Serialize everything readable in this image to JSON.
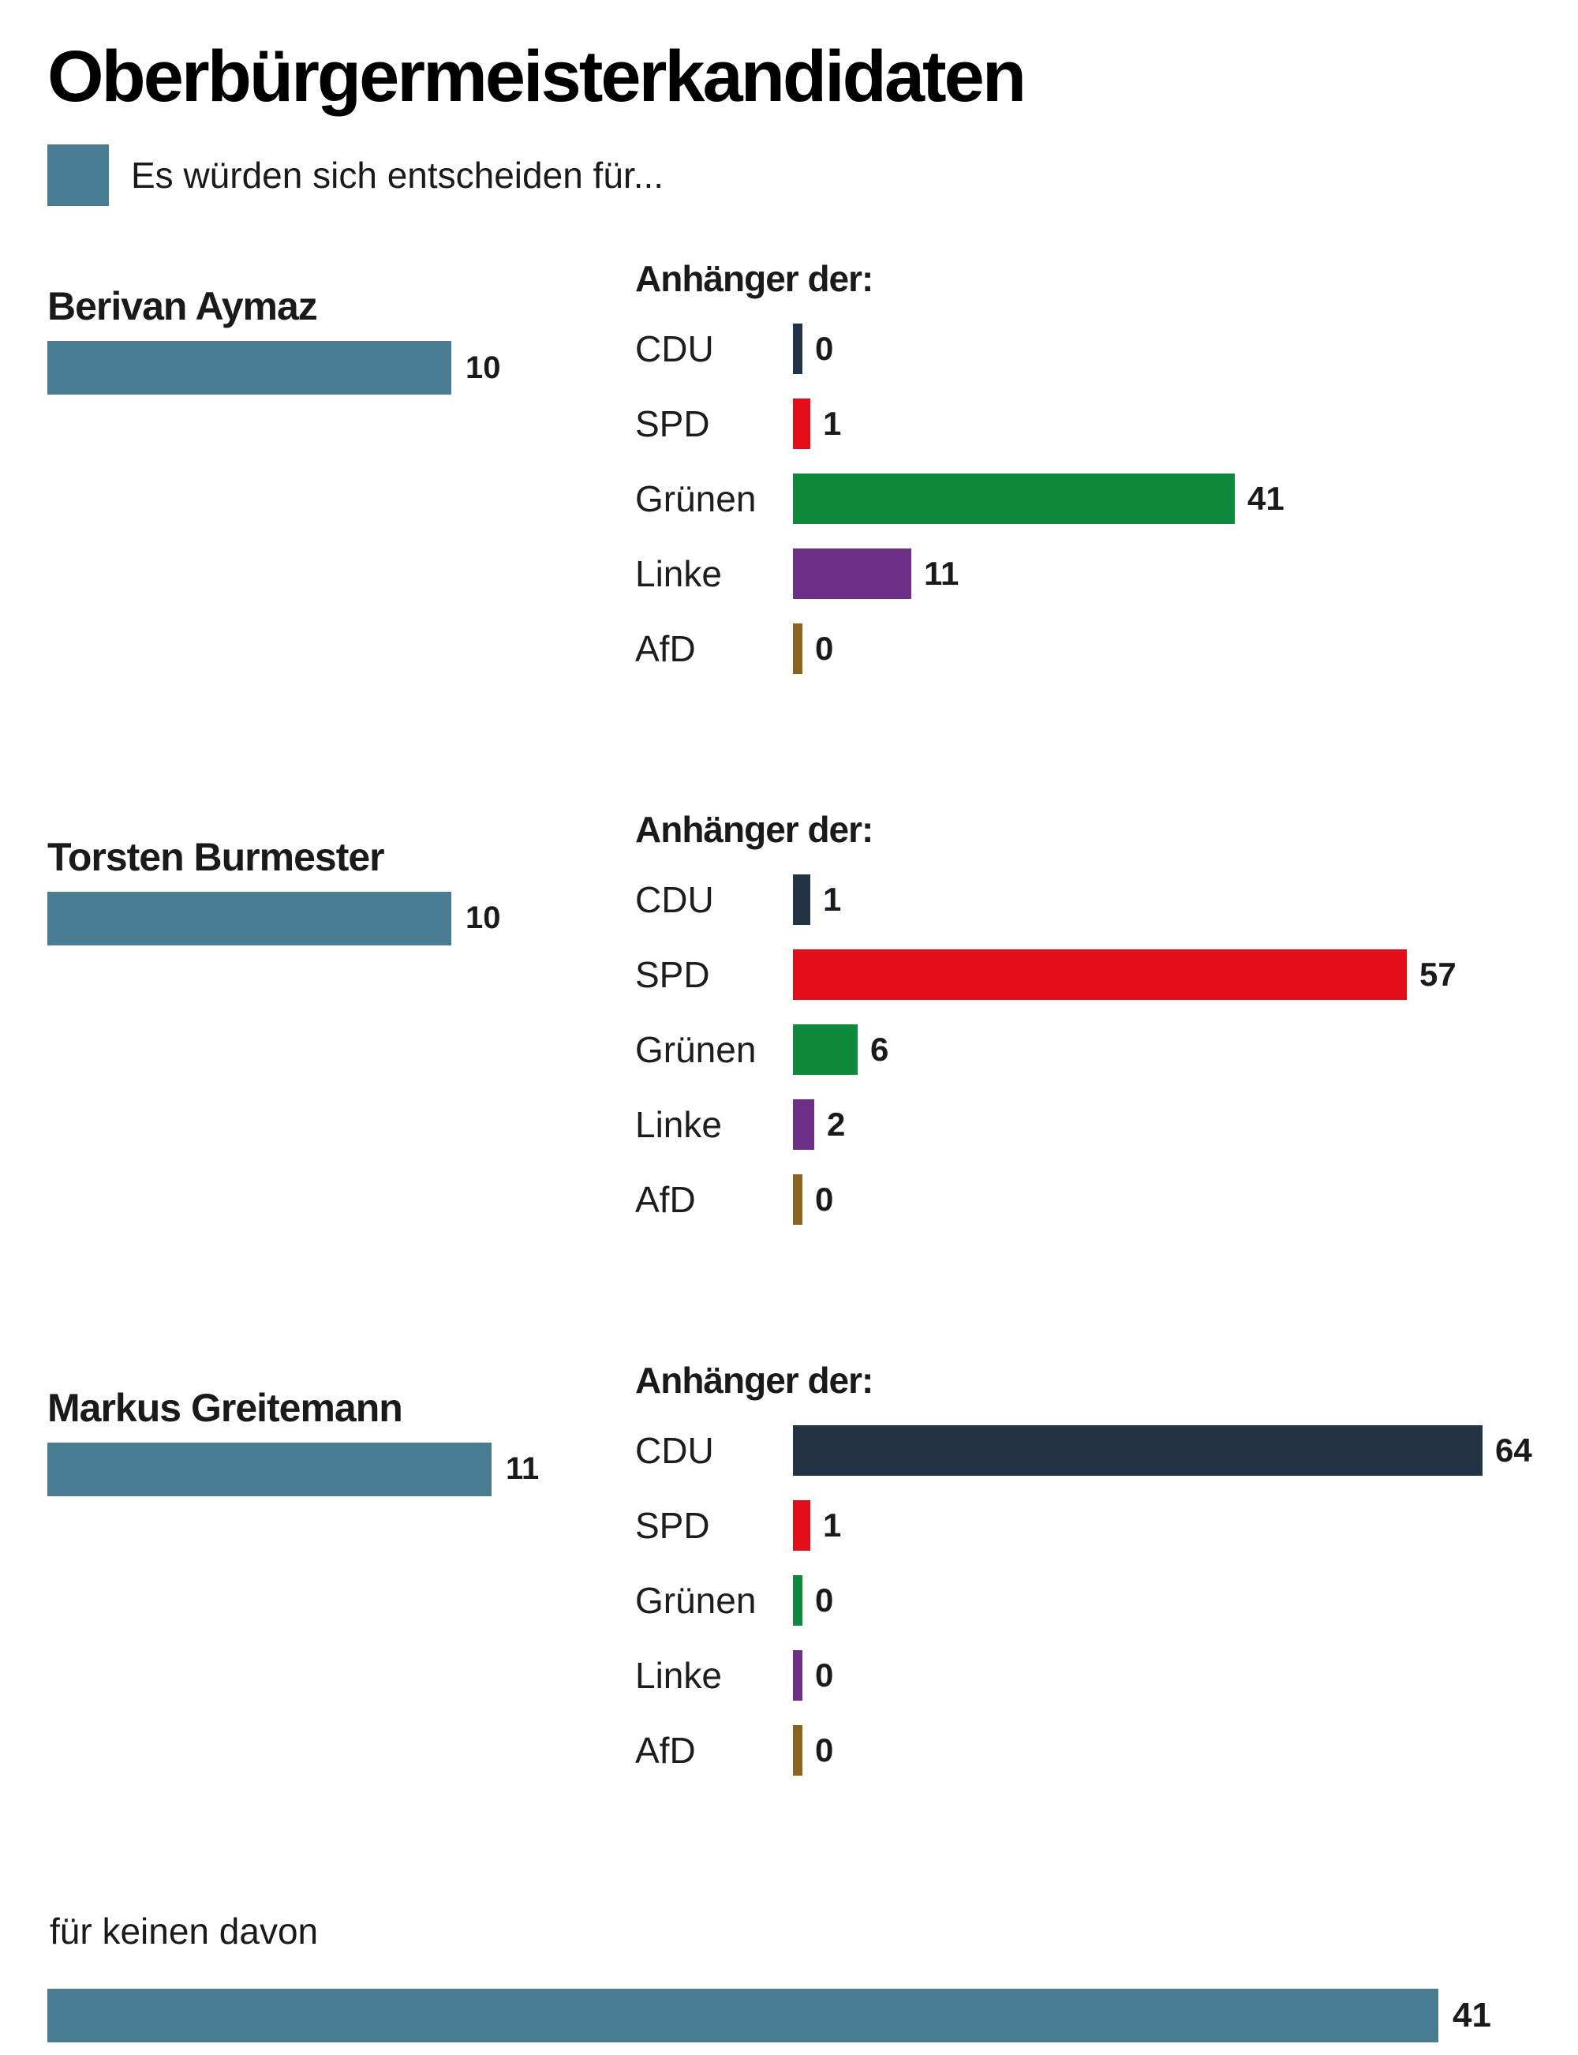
{
  "title": "Oberbürgermeisterkandidaten",
  "legend": {
    "swatch_color": "#497d92",
    "label": "Es würden sich entscheiden für..."
  },
  "supporters_heading": "Anhänger der:",
  "parties": [
    {
      "name": "CDU",
      "color": "#203445"
    },
    {
      "name": "SPD",
      "color": "#e20d19"
    },
    {
      "name": "Grünen",
      "color": "#0d8a3c"
    },
    {
      "name": "Linke",
      "color": "#6e2f86"
    },
    {
      "name": "AfD",
      "color": "#8a641f"
    }
  ],
  "candidates": [
    {
      "name": "Berivan Aymaz",
      "value": 10,
      "supporters": [
        0,
        1,
        41,
        11,
        0
      ]
    },
    {
      "name": "Torsten Burmester",
      "value": 10,
      "supporters": [
        1,
        57,
        6,
        2,
        0
      ]
    },
    {
      "name": "Markus Greitemann",
      "value": 11,
      "supporters": [
        64,
        1,
        0,
        0,
        0
      ]
    }
  ],
  "none_option": {
    "label": "für keinen davon",
    "value": 41
  },
  "chart_data": {
    "type": "bar",
    "orientation": "horizontal",
    "title": "Oberbürgermeisterkandidaten",
    "legend_label": "Es würden sich entscheiden für...",
    "group_heading": "Anhänger der:",
    "categories": [
      "CDU",
      "SPD",
      "Grünen",
      "Linke",
      "AfD"
    ],
    "series": [
      {
        "name": "Berivan Aymaz",
        "overall": 10,
        "values": [
          0,
          1,
          41,
          11,
          0
        ]
      },
      {
        "name": "Torsten Burmester",
        "overall": 10,
        "values": [
          1,
          57,
          6,
          2,
          0
        ]
      },
      {
        "name": "Markus Greitemann",
        "overall": 11,
        "values": [
          64,
          1,
          0,
          0,
          0
        ]
      },
      {
        "name": "für keinen davon",
        "overall": 41,
        "values": []
      }
    ],
    "value_labels_at_bar_ends": true,
    "grid": false,
    "axes": "none",
    "legend_position": "top-left",
    "colors": {
      "overall": "#497d92",
      "CDU": "#203445",
      "SPD": "#e20d19",
      "Grünen": "#0d8a3c",
      "Linke": "#6e2f86",
      "AfD": "#8a641f"
    }
  }
}
